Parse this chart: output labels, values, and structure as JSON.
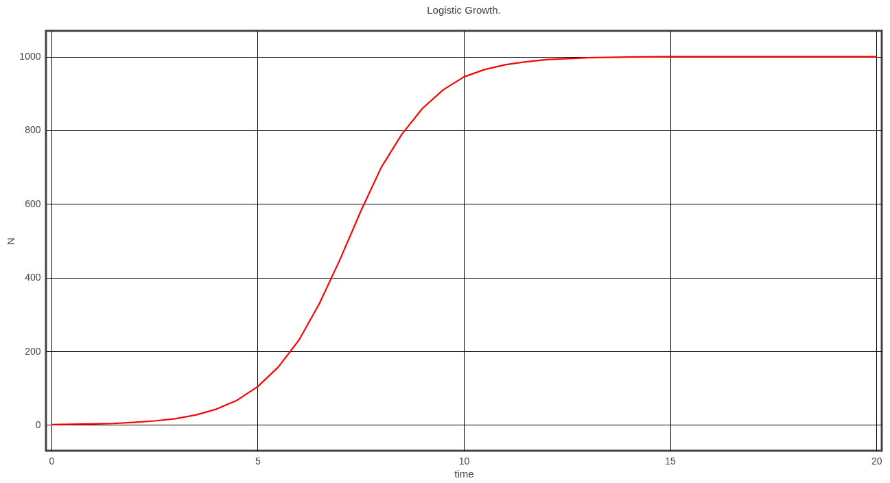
{
  "chart_data": {
    "type": "line",
    "title": "Logistic Growth.",
    "xlabel": "time",
    "ylabel": "N",
    "x": [
      0,
      0.5,
      1,
      1.5,
      2,
      2.5,
      3,
      3.5,
      4,
      4.5,
      5,
      5.5,
      6,
      6.5,
      7,
      7.5,
      8,
      8.5,
      9,
      9.5,
      10,
      10.5,
      11,
      11.5,
      12,
      13,
      14,
      15,
      20
    ],
    "series": [
      {
        "color": "#ff0000",
        "values": [
          1,
          2,
          3,
          4,
          7,
          11,
          17,
          27,
          43,
          67,
          104,
          157,
          230,
          330,
          450,
          580,
          700,
          790,
          860,
          910,
          945,
          965,
          978,
          986,
          992,
          997,
          999,
          1000,
          1000
        ]
      }
    ],
    "xlim": [
      -0.13,
      20.13
    ],
    "ylim": [
      -70,
      1070
    ],
    "xticks": [
      0,
      5,
      10,
      15,
      20
    ],
    "yticks": [
      0,
      200,
      400,
      600,
      800,
      1000
    ],
    "grid": true,
    "marker": "none",
    "line_style": "solid"
  }
}
